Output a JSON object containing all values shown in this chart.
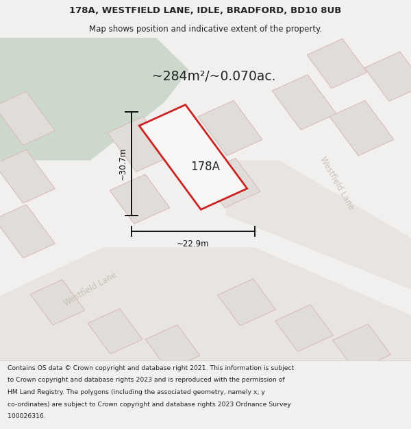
{
  "title_line1": "178A, WESTFIELD LANE, IDLE, BRADFORD, BD10 8UB",
  "title_line2": "Map shows position and indicative extent of the property.",
  "area_text": "~284m²/~0.070ac.",
  "label_178A": "178A",
  "dim_vertical": "~30.7m",
  "dim_horizontal": "~22.9m",
  "footer_lines": [
    "Contains OS data © Crown copyright and database right 2021. This information is subject",
    "to Crown copyright and database rights 2023 and is reproduced with the permission of",
    "HM Land Registry. The polygons (including the associated geometry, namely x, y",
    "co-ordinates) are subject to Crown copyright and database rights 2023 Ordnance Survey",
    "100026316."
  ],
  "bg_color": "#f2f0ee",
  "map_bg": "#eeebe8",
  "green_color": "#ccd8cc",
  "road_color": "#e8e4e0",
  "plot_fill": "#f8f6f4",
  "plot_edge_red": "#cc2222",
  "nbr_fill": "#e0dcd8",
  "nbr_edge": "#d8b8b8",
  "road_label_color": "#c8c0b8",
  "text_dark": "#222222",
  "footer_color": "#222222",
  "dim_color": "#111111"
}
